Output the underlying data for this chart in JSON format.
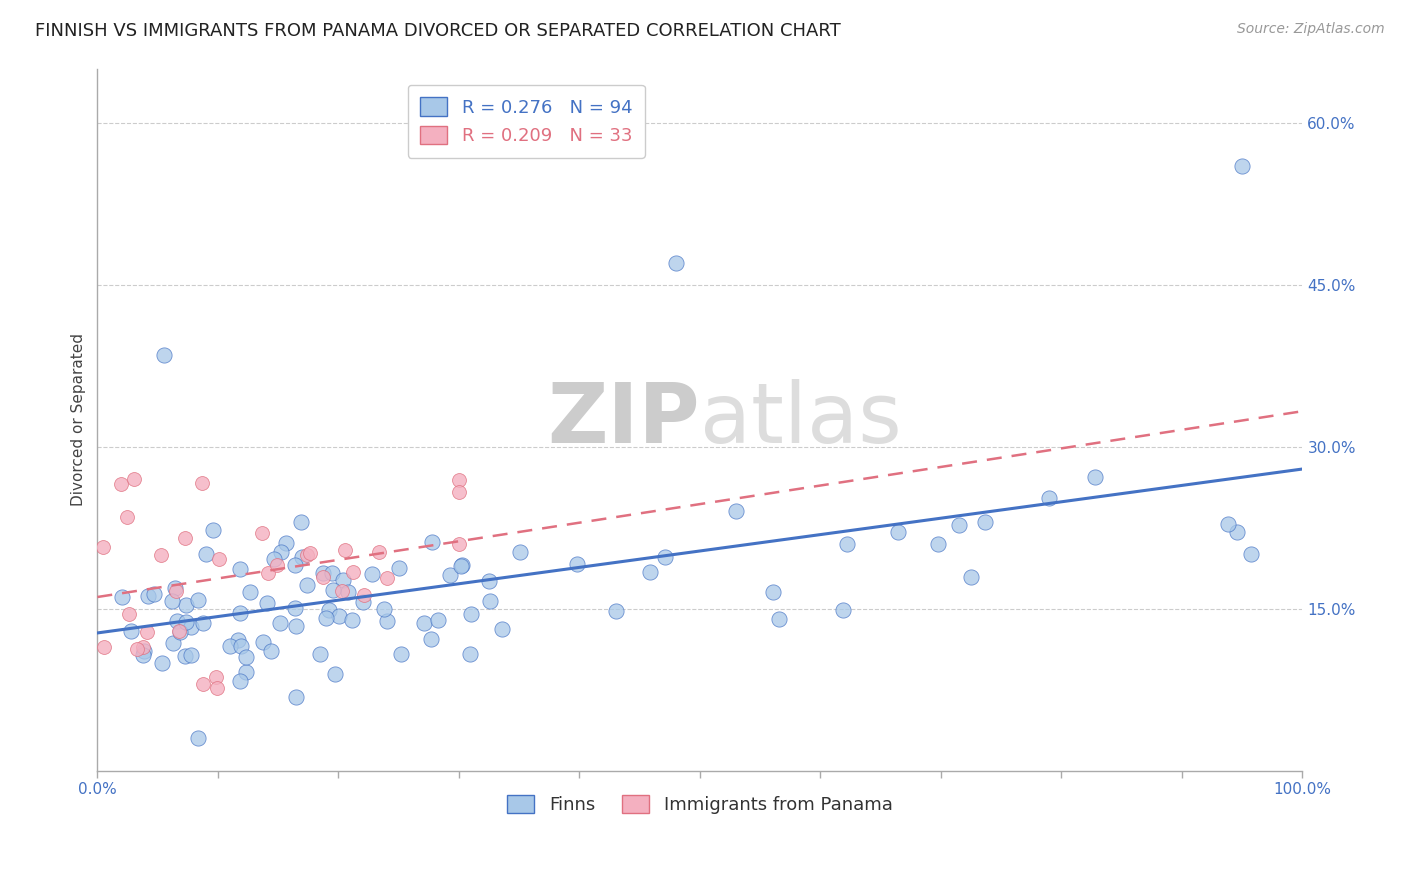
{
  "title": "FINNISH VS IMMIGRANTS FROM PANAMA DIVORCED OR SEPARATED CORRELATION CHART",
  "source": "Source: ZipAtlas.com",
  "ylabel": "Divorced or Separated",
  "legend_label1": "Finns",
  "legend_label2": "Immigrants from Panama",
  "r1": 0.276,
  "n1": 94,
  "r2": 0.209,
  "n2": 33,
  "color1": "#A8C8E8",
  "color2": "#F4B0C0",
  "line_color1": "#4472C4",
  "line_color2": "#E07080",
  "background_color": "#FFFFFF",
  "grid_color": "#CCCCCC",
  "xlim": [
    0.0,
    1.0
  ],
  "ylim": [
    0.0,
    0.65
  ],
  "ytick_positions": [
    0.15,
    0.3,
    0.45,
    0.6
  ],
  "ytick_labels": [
    "15.0%",
    "30.0%",
    "45.0%",
    "60.0%"
  ],
  "title_fontsize": 13,
  "axis_label_fontsize": 11,
  "tick_fontsize": 11,
  "legend_fontsize": 13,
  "watermark_fontsize": 60
}
